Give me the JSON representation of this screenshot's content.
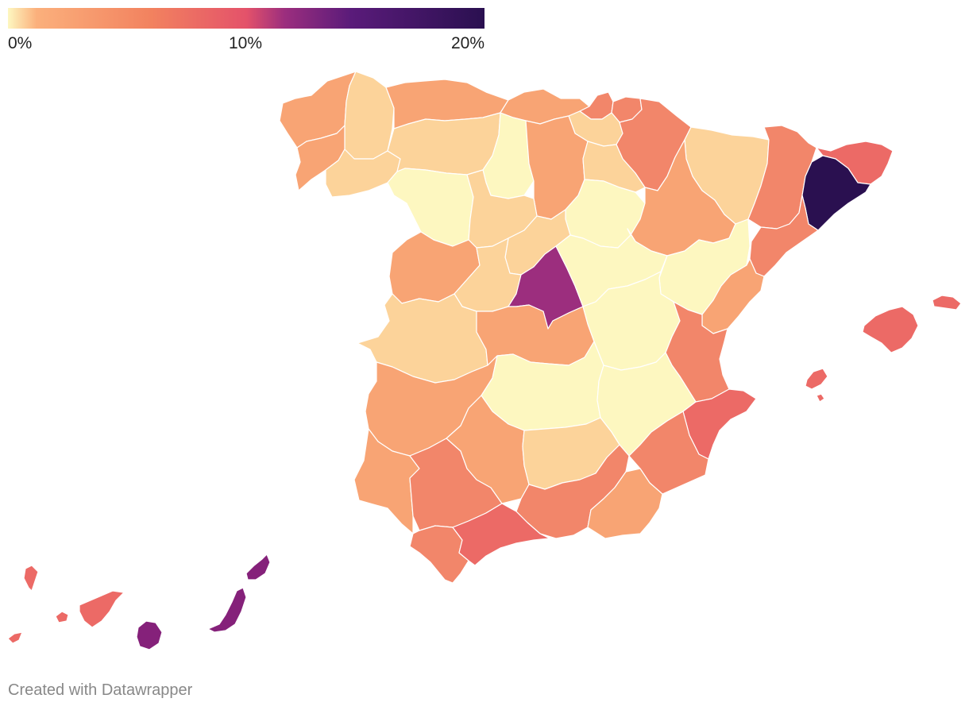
{
  "legend": {
    "min_label": "0%",
    "mid_label": "10%",
    "max_label": "20%",
    "stops": [
      "#fdf7c0",
      "#fbb07c",
      "#f2825f",
      "#e4526a",
      "#9c2e7e",
      "#5a1b7a",
      "#2a1050"
    ]
  },
  "map": {
    "regions": [
      {
        "name": "a-coruna",
        "fill": "#f8a474"
      },
      {
        "name": "lugo",
        "fill": "#fcd39a"
      },
      {
        "name": "asturias",
        "fill": "#f8a474"
      },
      {
        "name": "cantabria",
        "fill": "#f8a474"
      },
      {
        "name": "bizkaia",
        "fill": "#f2866a"
      },
      {
        "name": "gipuzkoa",
        "fill": "#f2866a"
      },
      {
        "name": "navarra",
        "fill": "#f2866a"
      },
      {
        "name": "huesca",
        "fill": "#fcd39a"
      },
      {
        "name": "lleida",
        "fill": "#f2866a"
      },
      {
        "name": "girona",
        "fill": "#ec6a66"
      },
      {
        "name": "barcelona",
        "fill": "#2a1050"
      },
      {
        "name": "tarragona",
        "fill": "#f2866a"
      },
      {
        "name": "pontevedra",
        "fill": "#f8a474"
      },
      {
        "name": "ourense",
        "fill": "#fcd39a"
      },
      {
        "name": "leon",
        "fill": "#fcd39a"
      },
      {
        "name": "palencia",
        "fill": "#fdf7c0"
      },
      {
        "name": "burgos",
        "fill": "#f8a474"
      },
      {
        "name": "alava",
        "fill": "#fcd39a"
      },
      {
        "name": "la-rioja",
        "fill": "#fcd39a"
      },
      {
        "name": "zamora",
        "fill": "#fdf7c0"
      },
      {
        "name": "valladolid",
        "fill": "#fcd39a"
      },
      {
        "name": "soria",
        "fill": "#fdf7c0"
      },
      {
        "name": "zaragoza",
        "fill": "#f8a474"
      },
      {
        "name": "salamanca",
        "fill": "#f8a474"
      },
      {
        "name": "avila",
        "fill": "#fcd39a"
      },
      {
        "name": "segovia",
        "fill": "#fcd39a"
      },
      {
        "name": "madrid",
        "fill": "#9c2e7e"
      },
      {
        "name": "guadalajara",
        "fill": "#fdf7c0"
      },
      {
        "name": "teruel",
        "fill": "#fdf7c0"
      },
      {
        "name": "castellon",
        "fill": "#f8a474"
      },
      {
        "name": "caceres",
        "fill": "#fcd39a"
      },
      {
        "name": "toledo",
        "fill": "#f8a474"
      },
      {
        "name": "cuenca",
        "fill": "#fdf7c0"
      },
      {
        "name": "valencia",
        "fill": "#f2866a"
      },
      {
        "name": "badajoz",
        "fill": "#f8a474"
      },
      {
        "name": "ciudad-real",
        "fill": "#fdf7c0"
      },
      {
        "name": "albacete",
        "fill": "#fdf7c0"
      },
      {
        "name": "alicante",
        "fill": "#ec6a66"
      },
      {
        "name": "huelva",
        "fill": "#f8a474"
      },
      {
        "name": "sevilla",
        "fill": "#f2866a"
      },
      {
        "name": "cordoba",
        "fill": "#f8a474"
      },
      {
        "name": "jaen",
        "fill": "#fcd39a"
      },
      {
        "name": "granada",
        "fill": "#f2866a"
      },
      {
        "name": "murcia",
        "fill": "#f2866a"
      },
      {
        "name": "almeria",
        "fill": "#f8a474"
      },
      {
        "name": "cadiz",
        "fill": "#f2866a"
      },
      {
        "name": "malaga",
        "fill": "#ec6a66"
      },
      {
        "name": "mallorca",
        "fill": "#ec6a66"
      },
      {
        "name": "menorca",
        "fill": "#ec6a66"
      },
      {
        "name": "ibiza",
        "fill": "#ec6a66"
      },
      {
        "name": "la-palma",
        "fill": "#ec6a66"
      },
      {
        "name": "tenerife",
        "fill": "#ec6a66"
      },
      {
        "name": "la-gomera",
        "fill": "#ec6a66"
      },
      {
        "name": "el-hierro",
        "fill": "#ec6a66"
      },
      {
        "name": "gran-canaria",
        "fill": "#85217a"
      },
      {
        "name": "fuerteventura",
        "fill": "#85217a"
      },
      {
        "name": "lanzarote",
        "fill": "#85217a"
      }
    ]
  },
  "footer": {
    "credit": "Created with Datawrapper"
  }
}
